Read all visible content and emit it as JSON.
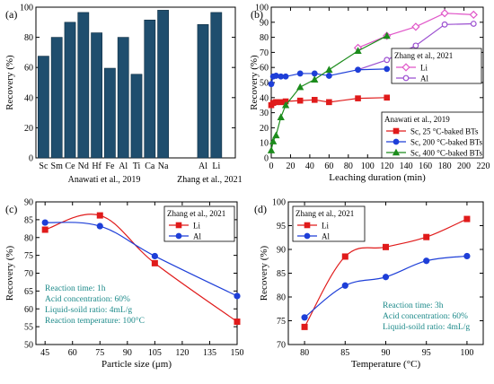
{
  "chart_data": [
    {
      "panel": "(a)",
      "type": "bar",
      "ylabel": "Recovery (%)",
      "ylim": [
        0,
        100
      ],
      "yticks": [
        0,
        20,
        40,
        60,
        80,
        100
      ],
      "bar_color": "#1f4e6e",
      "categories": [
        "Sc",
        "Sm",
        "Ce",
        "Nd",
        "Hf",
        "Fe",
        "Al",
        "Ti",
        "Ca",
        "Na",
        "Al",
        "Li"
      ],
      "values": [
        67.5,
        80,
        90,
        96.5,
        83,
        59.5,
        80,
        55.5,
        91.5,
        98,
        88.5,
        96.5
      ],
      "groups": [
        {
          "label": "Anawati et al., 2019",
          "categories": [
            "Sc",
            "Sm",
            "Ce",
            "Nd",
            "Hf",
            "Fe",
            "Al",
            "Ti",
            "Ca",
            "Na"
          ]
        },
        {
          "label": "Zhang et al., 2021",
          "categories": [
            "Al",
            "Li"
          ]
        }
      ]
    },
    {
      "panel": "(b)",
      "type": "line",
      "xlabel": "Leaching duration (min)",
      "ylabel": "Recovery (%)",
      "xlim": [
        0,
        220
      ],
      "ylim": [
        0,
        100
      ],
      "xticks": [
        0,
        20,
        40,
        60,
        80,
        100,
        120,
        140,
        160,
        180,
        200,
        220
      ],
      "yticks": [
        0,
        10,
        20,
        30,
        40,
        50,
        60,
        70,
        80,
        90,
        100
      ],
      "legends": [
        {
          "title": "Zhang et al., 2021",
          "position": "upper-right",
          "series": [
            0,
            1
          ]
        },
        {
          "title": "Anawati et al., 2019",
          "position": "lower-right",
          "series": [
            2,
            3,
            4
          ]
        }
      ],
      "series": [
        {
          "name": "Li",
          "color": "#e055c8",
          "marker": "diamond-open",
          "x": [
            90,
            120,
            150,
            180,
            210
          ],
          "y": [
            73,
            81,
            87,
            96,
            95
          ]
        },
        {
          "name": "Al",
          "color": "#9b4fd0",
          "marker": "circle-open",
          "x": [
            90,
            120,
            150,
            180,
            210
          ],
          "y": [
            58.5,
            65,
            74.5,
            88.5,
            89
          ]
        },
        {
          "name": "Sc, 25 °C-baked BTs",
          "color": "#e01b1b",
          "marker": "square",
          "x": [
            0,
            2,
            5,
            10,
            15,
            30,
            45,
            60,
            90,
            120
          ],
          "y": [
            35,
            36.5,
            37,
            37,
            37.5,
            38,
            38.5,
            37,
            39.5,
            40
          ]
        },
        {
          "name": "Sc, 200 °C-baked BTs",
          "color": "#1e3fd8",
          "marker": "circle",
          "x": [
            0,
            2,
            5,
            10,
            15,
            30,
            45,
            60,
            90,
            120
          ],
          "y": [
            49,
            54,
            54.5,
            54,
            54,
            56,
            56,
            54.5,
            58.5,
            59
          ]
        },
        {
          "name": "Sc,  400 °C-baked BTs",
          "color": "#1c8c1c",
          "marker": "triangle",
          "x": [
            0,
            2,
            5,
            10,
            15,
            30,
            45,
            60,
            90,
            120
          ],
          "y": [
            5,
            11,
            15,
            27,
            35,
            47,
            52,
            58.5,
            71,
            81
          ]
        }
      ]
    },
    {
      "panel": "(c)",
      "type": "line",
      "xlabel": "Particle size (μm)",
      "ylabel": "Recovery (%)",
      "xlim": [
        40,
        150
      ],
      "ylim": [
        50,
        90
      ],
      "xticks": [
        45,
        60,
        75,
        90,
        105,
        120,
        135,
        150
      ],
      "yticks": [
        50,
        55,
        60,
        65,
        70,
        75,
        80,
        85,
        90
      ],
      "legend": {
        "title": "Zhang et al., 2021",
        "position": "upper-right"
      },
      "annotation": [
        "Reaction time: 1h",
        "Acid concentration: 60%",
        "Liquid-soild ratio: 4mL/g",
        "Reaction temperature: 100°C"
      ],
      "annotation_color": "#1d8a8a",
      "series": [
        {
          "name": "Li",
          "color": "#e01b1b",
          "marker": "square",
          "x": [
            45,
            75,
            105,
            150
          ],
          "y": [
            82.2,
            86.2,
            72.8,
            56.4
          ]
        },
        {
          "name": "Al",
          "color": "#1e3fd8",
          "marker": "circle",
          "x": [
            45,
            75,
            105,
            150
          ],
          "y": [
            84.2,
            83.2,
            74.8,
            63.6
          ]
        }
      ]
    },
    {
      "panel": "(d)",
      "type": "line",
      "xlabel": "Temperature (°C)",
      "ylabel": "Recovery (%)",
      "xlim": [
        78,
        102
      ],
      "ylim": [
        70,
        100
      ],
      "xticks": [
        80,
        85,
        90,
        95,
        100
      ],
      "yticks": [
        70,
        75,
        80,
        85,
        90,
        95,
        100
      ],
      "legend": {
        "title": "Zhang et al., 2021",
        "position": "upper-left"
      },
      "annotation": [
        "Reaction time: 3h",
        "Acid concentration: 60%",
        "Liquid-soild ratio: 4mL/g"
      ],
      "annotation_color": "#1d8a8a",
      "series": [
        {
          "name": "Li",
          "color": "#e01b1b",
          "marker": "square",
          "x": [
            80,
            85,
            90,
            95,
            100
          ],
          "y": [
            73.7,
            88.5,
            90.5,
            92.6,
            96.4
          ]
        },
        {
          "name": "Al",
          "color": "#1e3fd8",
          "marker": "circle",
          "x": [
            80,
            85,
            90,
            95,
            100
          ],
          "y": [
            75.7,
            82.4,
            84.2,
            87.6,
            88.6
          ]
        }
      ]
    }
  ]
}
